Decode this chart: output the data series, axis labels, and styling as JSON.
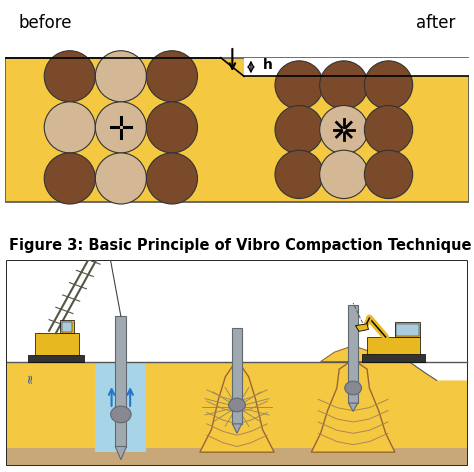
{
  "bg_color": "#ffffff",
  "sand_yellow": "#F5C842",
  "dark_brown": "#7B4A2A",
  "light_tan": "#D4B896",
  "caption": "Figure 3: Basic Principle of Vibro Compaction Technique",
  "caption_fontsize": 10.5,
  "before_label": "before",
  "after_label": "after",
  "h_label": "h",
  "ground_brown": "#C8A050",
  "water_blue": "#A8D4E8",
  "pole_gray": "#A0A8B0",
  "dark_gray": "#606870",
  "sky_white": "#ffffff",
  "bottom_tan": "#C8A878",
  "line_color": "#555555",
  "crane_yellow": "#E8B820",
  "excavator_yellow": "#E8B820"
}
